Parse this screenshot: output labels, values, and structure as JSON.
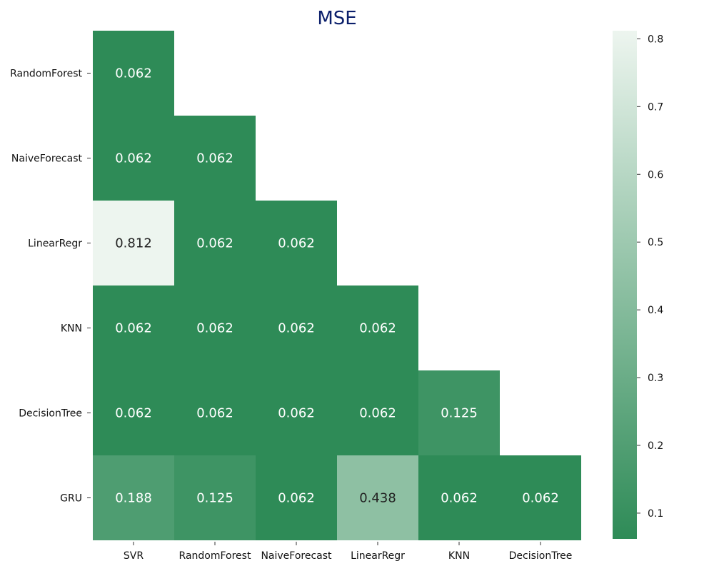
{
  "chart_data": {
    "type": "heatmap",
    "title": "MSE",
    "row_labels": [
      "RandomForest",
      "NaiveForecast",
      "LinearRegr",
      "KNN",
      "DecisionTree",
      "GRU"
    ],
    "col_labels": [
      "SVR",
      "RandomForest",
      "NaiveForecast",
      "LinearRegr",
      "KNN",
      "DecisionTree"
    ],
    "values": [
      [
        0.062,
        null,
        null,
        null,
        null,
        null
      ],
      [
        0.062,
        0.062,
        null,
        null,
        null,
        null
      ],
      [
        0.812,
        0.062,
        0.062,
        null,
        null,
        null
      ],
      [
        0.062,
        0.062,
        0.062,
        0.062,
        null,
        null
      ],
      [
        0.062,
        0.062,
        0.062,
        0.062,
        0.125,
        null
      ],
      [
        0.188,
        0.125,
        0.062,
        0.438,
        0.062,
        0.062
      ]
    ],
    "value_labels": [
      [
        "0.062",
        "",
        "",
        "",
        "",
        ""
      ],
      [
        "0.062",
        "0.062",
        "",
        "",
        "",
        ""
      ],
      [
        "0.812",
        "0.062",
        "0.062",
        "",
        "",
        ""
      ],
      [
        "0.062",
        "0.062",
        "0.062",
        "0.062",
        "",
        ""
      ],
      [
        "0.062",
        "0.062",
        "0.062",
        "0.062",
        "0.125",
        ""
      ],
      [
        "0.188",
        "0.125",
        "0.062",
        "0.438",
        "0.062",
        "0.062"
      ]
    ],
    "colorbar": {
      "ticks": [
        0.1,
        0.2,
        0.3,
        0.4,
        0.5,
        0.6,
        0.7,
        0.8
      ],
      "tick_labels": [
        "0.1",
        "0.2",
        "0.3",
        "0.4",
        "0.5",
        "0.6",
        "0.7",
        "0.8"
      ],
      "range": [
        0.062,
        0.812
      ]
    },
    "color_low": "#2e8b57",
    "color_high": "#edf5ef",
    "title_color": "#0b1f6b",
    "legend_placement": "right"
  }
}
